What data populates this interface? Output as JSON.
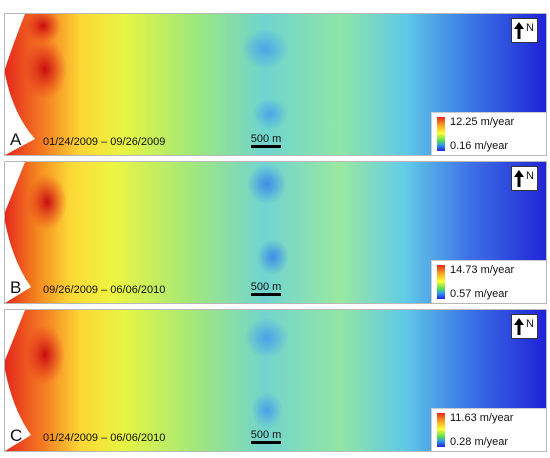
{
  "panels": [
    {
      "letter": "A",
      "dates": "01/24/2009 – 09/26/2009",
      "scale": "500 m",
      "north": "N",
      "legend_max": "12.25 m/year",
      "legend_min": "0.16 m/year"
    },
    {
      "letter": "B",
      "dates": "09/26/2009 – 06/06/2010",
      "scale": "500 m",
      "north": "N",
      "legend_max": "14.73 m/year",
      "legend_min": "0.57 m/year"
    },
    {
      "letter": "C",
      "dates": "01/24/2009 – 06/06/2010",
      "scale": "500 m",
      "north": "N",
      "legend_max": "11.63 m/year",
      "legend_min": "0.28 m/year"
    }
  ],
  "colors": {
    "high": "#e4281c",
    "upper": "#f5a623",
    "mid": "#ffff33",
    "lower": "#55dd55",
    "cyan": "#66ccee",
    "low": "#1f22d8"
  }
}
